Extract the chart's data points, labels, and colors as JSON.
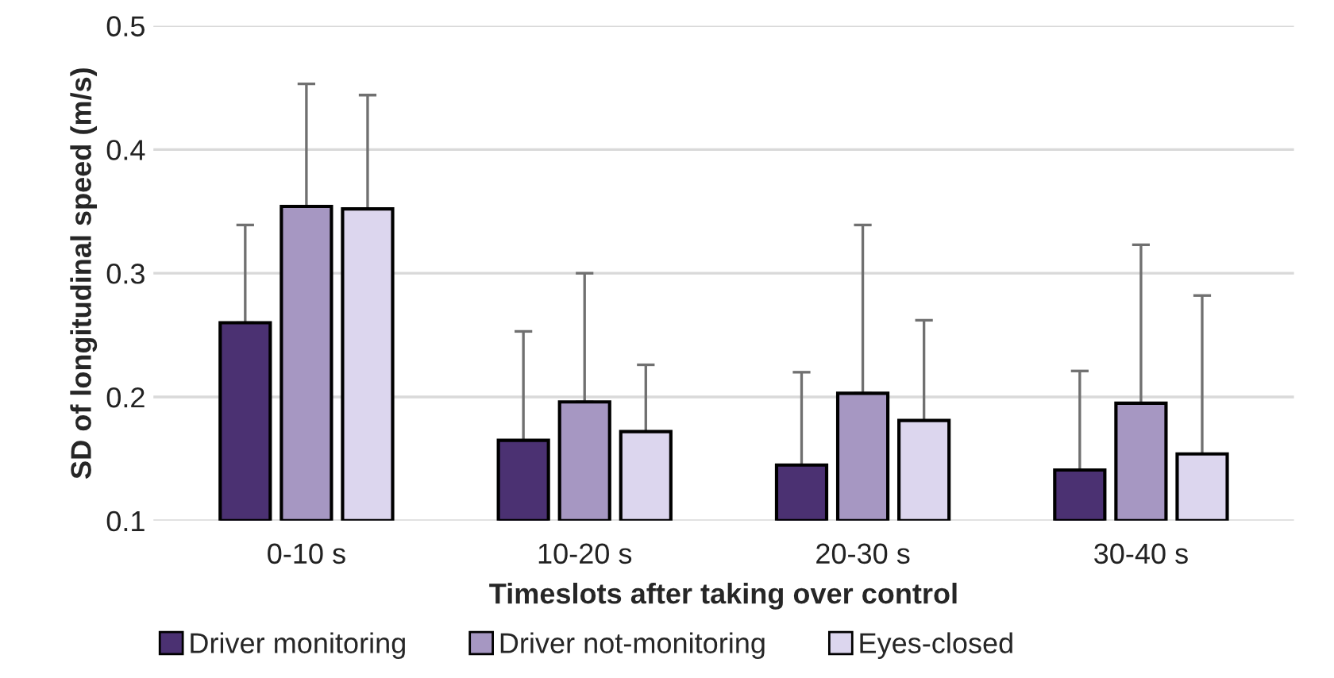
{
  "chart_data": {
    "type": "bar",
    "xlabel": "Timeslots after taking over control",
    "ylabel": "SD of longitudinal speed (m/s)",
    "categories": [
      "0-10 s",
      "10-20 s",
      "20-30 s",
      "30-40 s"
    ],
    "series": [
      {
        "name": "Driver monitoring",
        "color": "#4b3172",
        "values": [
          0.26,
          0.165,
          0.145,
          0.141
        ],
        "errors": [
          [
            0.26,
            0.339
          ],
          [
            0.165,
            0.253
          ],
          [
            0.145,
            0.22
          ],
          [
            0.141,
            0.221
          ]
        ]
      },
      {
        "name": "Driver not-monitoring",
        "color": "#a697c2",
        "values": [
          0.354,
          0.196,
          0.203,
          0.195
        ],
        "errors": [
          [
            0.354,
            0.453
          ],
          [
            0.196,
            0.3
          ],
          [
            0.203,
            0.339
          ],
          [
            0.195,
            0.323
          ]
        ]
      },
      {
        "name": "Eyes-closed",
        "color": "#dcd6ee",
        "values": [
          0.352,
          0.172,
          0.181,
          0.154
        ],
        "errors": [
          [
            0.352,
            0.444
          ],
          [
            0.172,
            0.226
          ],
          [
            0.181,
            0.262
          ],
          [
            0.154,
            0.282
          ]
        ]
      }
    ],
    "ylim": [
      0.1,
      0.5
    ],
    "yticks": [
      0.1,
      0.2,
      0.3,
      0.4,
      0.5
    ],
    "grid": "y",
    "legend": "bottom"
  }
}
